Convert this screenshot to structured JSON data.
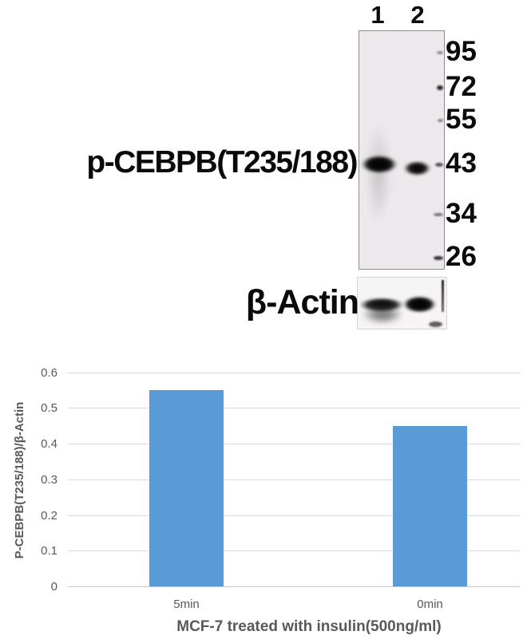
{
  "blot": {
    "lane_labels": [
      "1",
      "2"
    ],
    "target_label": "p-CEBPB(T235/188)",
    "loading_control_label": "β-Actin",
    "mw_markers": [
      "95",
      "72",
      "55",
      "43",
      "34",
      "26"
    ],
    "panel_background": "#EDE8EC",
    "band_color": "#0a0a0a"
  },
  "chart_data": {
    "type": "bar",
    "categories": [
      "5min",
      "0min"
    ],
    "values": [
      0.55,
      0.45
    ],
    "title": "",
    "xlabel": "MCF-7 treated with insulin(500ng/ml)",
    "ylabel": "P-CEBPB(T235/188)/β-Actin",
    "ylim": [
      0,
      0.6
    ],
    "yticks": [
      0,
      0.1,
      0.2,
      0.3,
      0.4,
      0.5,
      0.6
    ],
    "grid": true,
    "legend": false,
    "bar_color": "#5B9BD5",
    "gridline_color": "#D9D9D9",
    "text_color": "#595959"
  }
}
